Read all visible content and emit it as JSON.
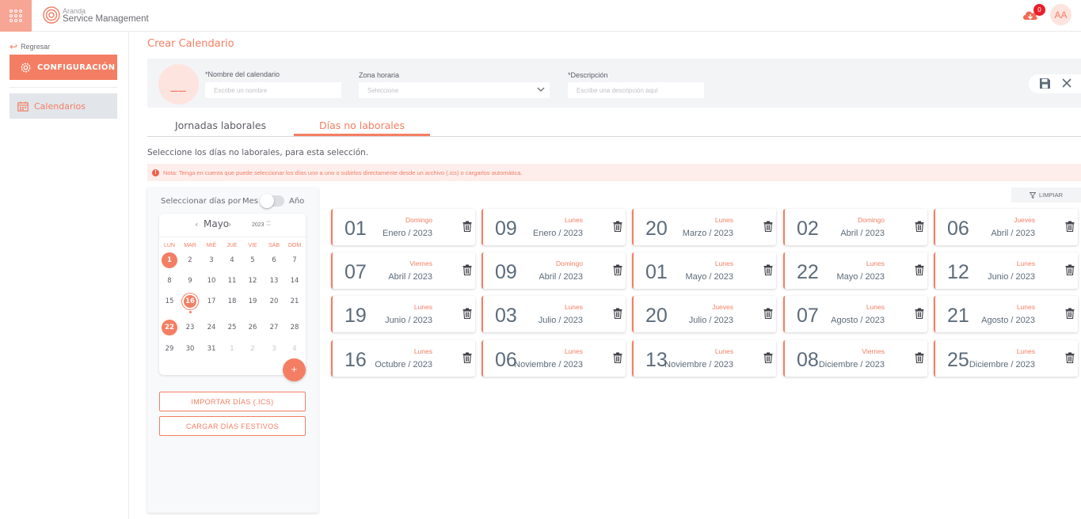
{
  "header": {
    "brand_small": "Aranda",
    "brand_big": "Service Management",
    "notification_count": "0",
    "avatar_initials": "AA"
  },
  "sidebar": {
    "back_label": "Regresar",
    "config_label": "CONFIGURACIÓN",
    "calendars_label": "Calendarios"
  },
  "page": {
    "title": "Crear Calendario",
    "avatar_initials": "__"
  },
  "form": {
    "name_label": "*Nombre del calendario",
    "name_placeholder": "Escribe un nombre",
    "tz_label": "Zona horaria",
    "tz_placeholder": "Seleccione",
    "desc_label": "*Descripción",
    "desc_placeholder": "Escribe una descripción aquí"
  },
  "tabs": [
    {
      "label": "Jornadas laborales",
      "active": false
    },
    {
      "label": "Días no laborales",
      "active": true
    }
  ],
  "intro_text": "Seleccione los días no laborales, para esta selección.",
  "note_text": "Nota: Tenga en cuenta que puede seleccionar los días uno a uno o subirlos directamente desde un archivo (.ics) o cargarlos automática.",
  "picker": {
    "select_by_label": "Seleccionar días por",
    "month_option": "Mes",
    "year_option": "Año",
    "month": "Mayo",
    "year": "2023",
    "weekdays": [
      "LUN",
      "MAR",
      "MIÉ",
      "JUE",
      "VIE",
      "SÁB",
      "DOM"
    ],
    "weeks": [
      [
        "1",
        "2",
        "3",
        "4",
        "5",
        "6",
        "7"
      ],
      [
        "8",
        "9",
        "10",
        "11",
        "12",
        "13",
        "14"
      ],
      [
        "15",
        "16",
        "17",
        "18",
        "19",
        "20",
        "21"
      ],
      [
        "22",
        "23",
        "24",
        "25",
        "26",
        "27",
        "28"
      ],
      [
        "29",
        "30",
        "31",
        "1",
        "2",
        "3",
        "4"
      ]
    ],
    "selected_days": [
      "1",
      "22"
    ],
    "today": "16",
    "add_label": "+",
    "import_label": "IMPORTAR DÍAS (.ICS)",
    "holidays_label": "CARGAR DÍAS FESTIVOS"
  },
  "clear_label": "LIMPIAR",
  "days": [
    {
      "day": "01",
      "weekday": "Domingo",
      "month_year": "Enero / 2023"
    },
    {
      "day": "09",
      "weekday": "Lunes",
      "month_year": "Enero / 2023"
    },
    {
      "day": "20",
      "weekday": "Lunes",
      "month_year": "Marzo / 2023"
    },
    {
      "day": "02",
      "weekday": "Domingo",
      "month_year": "Abril / 2023"
    },
    {
      "day": "06",
      "weekday": "Jueves",
      "month_year": "Abril / 2023"
    },
    {
      "day": "07",
      "weekday": "Viernes",
      "month_year": "Abril / 2023"
    },
    {
      "day": "09",
      "weekday": "Domingo",
      "month_year": "Abril / 2023"
    },
    {
      "day": "01",
      "weekday": "Lunes",
      "month_year": "Mayo / 2023"
    },
    {
      "day": "22",
      "weekday": "Lunes",
      "month_year": "Mayo / 2023"
    },
    {
      "day": "12",
      "weekday": "Lunes",
      "month_year": "Junio / 2023"
    },
    {
      "day": "19",
      "weekday": "Lunes",
      "month_year": "Junio / 2023"
    },
    {
      "day": "03",
      "weekday": "Lunes",
      "month_year": "Julio / 2023"
    },
    {
      "day": "20",
      "weekday": "Jueves",
      "month_year": "Julio / 2023"
    },
    {
      "day": "07",
      "weekday": "Lunes",
      "month_year": "Agosto / 2023"
    },
    {
      "day": "21",
      "weekday": "Lunes",
      "month_year": "Agosto / 2023"
    },
    {
      "day": "16",
      "weekday": "Lunes",
      "month_year": "Octubre / 2023"
    },
    {
      "day": "06",
      "weekday": "Lunes",
      "month_year": "Noviembre / 2023"
    },
    {
      "day": "13",
      "weekday": "Lunes",
      "month_year": "Noviembre / 2023"
    },
    {
      "day": "08",
      "weekday": "Viernes",
      "month_year": "Diciembre / 2023"
    },
    {
      "day": "25",
      "weekday": "Lunes",
      "month_year": "Diciembre / 2023"
    }
  ],
  "colors": {
    "accent": "#f47e63",
    "accent_light": "#fde4de",
    "badge": "#e8202a"
  }
}
